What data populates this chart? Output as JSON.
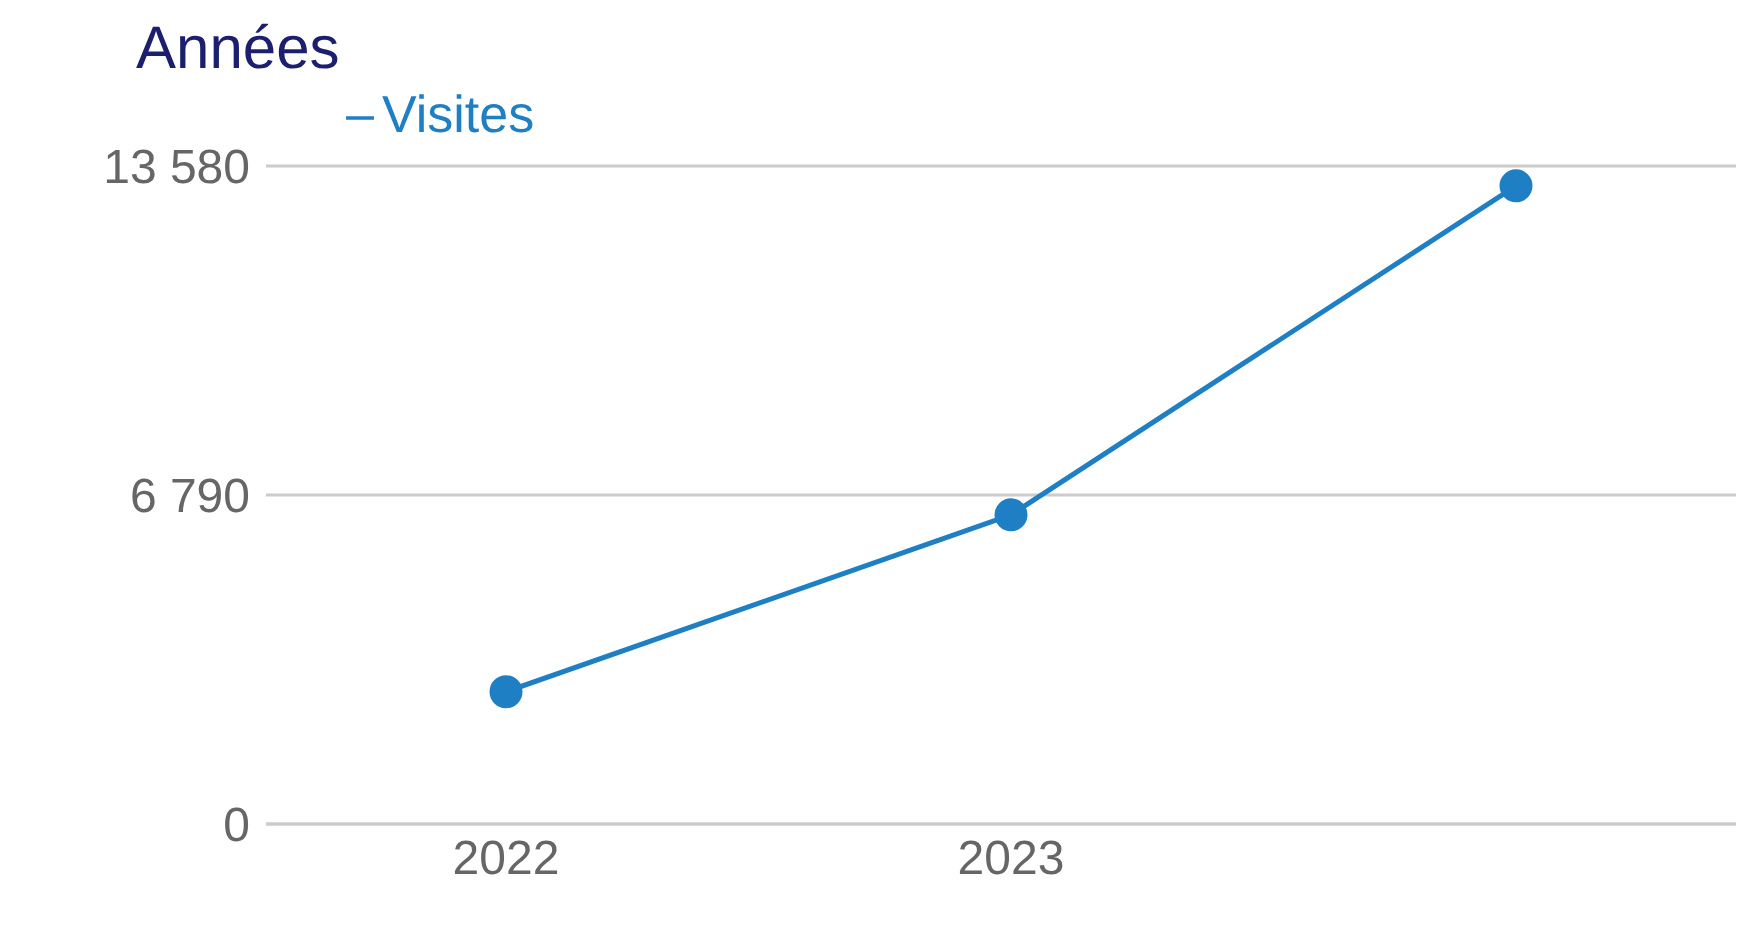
{
  "chart_data": {
    "type": "line",
    "title": "Années",
    "categories": [
      "2022",
      "2023",
      null
    ],
    "series": [
      {
        "name": "Visites",
        "color": "#1f7fc4",
        "values": [
          2730,
          6380,
          13170
        ]
      }
    ],
    "ylim": [
      0,
      13580
    ],
    "yticks": [
      0,
      {
        "value": 6790,
        "label": "6 790"
      },
      {
        "value": 13580,
        "label": "13 580"
      }
    ],
    "grid": "y",
    "legend": "top left",
    "marker": "circle",
    "line_style": "solid"
  }
}
